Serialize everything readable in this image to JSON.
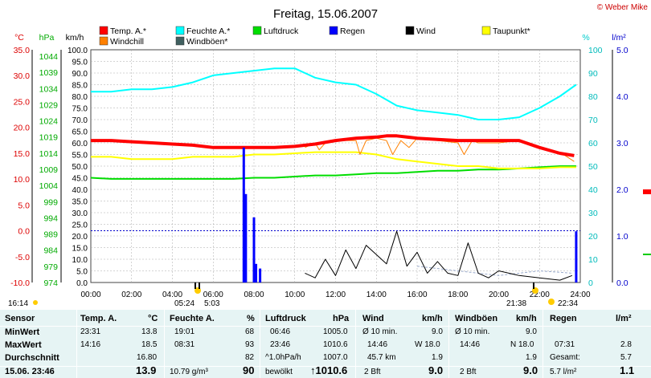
{
  "title": "Freitag, 15.06.2007",
  "copyright": "© Weber Mike",
  "axis_units": {
    "temp": "°C",
    "pressure": "hPa",
    "speed": "km/h",
    "humidity": "%",
    "rain": "l/m²"
  },
  "legend": [
    {
      "label": "Temp. A.*",
      "color": "#ff0000"
    },
    {
      "label": "Feuchte A.*",
      "color": "#00ffff"
    },
    {
      "label": "Luftdruck",
      "color": "#00dd00"
    },
    {
      "label": "Regen",
      "color": "#0000ff"
    },
    {
      "label": "Wind",
      "color": "#000000"
    },
    {
      "label": "Taupunkt*",
      "color": "#ffff00"
    },
    {
      "label": "Windchill",
      "color": "#ff8000"
    },
    {
      "label": "Windböen*",
      "color": "#406060"
    }
  ],
  "colors": {
    "temp": "#ff0000",
    "humidity": "#00ffff",
    "pressure": "#00dd00",
    "rain": "#0000ff",
    "wind": "#000000",
    "gust": "#99aacc",
    "dewpoint": "#ffff00",
    "windchill": "#ff8000",
    "grid": "#aaaaaa",
    "table_bg": "#e6f4f4"
  },
  "chart_data": {
    "type": "line",
    "title": "Freitag, 15.06.2007",
    "x_ticks": [
      "00:00",
      "02:00",
      "04:00",
      "06:00",
      "08:00",
      "10:00",
      "12:00",
      "14:00",
      "16:00",
      "18:00",
      "20:00",
      "22:00",
      "24:00"
    ],
    "xlim": [
      0,
      24
    ],
    "axes": {
      "temp_c": {
        "min": -10,
        "max": 35,
        "ticks": [
          "35.0",
          "30.0",
          "25.0",
          "20.0",
          "15.0",
          "10.0",
          "5.0",
          "0.0",
          "-5.0",
          "-10.0"
        ]
      },
      "pressure_hpa": {
        "ticks": [
          "1044",
          "1039",
          "1034",
          "1029",
          "1024",
          "1019",
          "1014",
          "1009",
          "1004",
          "999",
          "994",
          "989",
          "984",
          "979",
          "974"
        ]
      },
      "speed_kmh": {
        "min": 0,
        "max": 100,
        "ticks": [
          "100.0",
          "95.0",
          "90.0",
          "85.0",
          "80.0",
          "75.0",
          "70.0",
          "65.0",
          "60.0",
          "55.0",
          "50.0",
          "45.0",
          "40.0",
          "35.0",
          "30.0",
          "25.0",
          "20.0",
          "15.0",
          "10.0",
          "5.0",
          "0.0"
        ]
      },
      "humidity_pct": {
        "min": 0,
        "max": 100,
        "ticks": [
          "100",
          "90",
          "80",
          "70",
          "60",
          "50",
          "40",
          "30",
          "20",
          "10",
          "0"
        ]
      },
      "rain_l": {
        "min": 0,
        "max": 5,
        "ticks": [
          "5.0",
          "4.0",
          "3.0",
          "2.0",
          "1.0",
          "0.0"
        ]
      }
    },
    "series": [
      {
        "name": "Temp. A.*",
        "axis": "speed_kmh",
        "x": [
          0,
          1,
          2,
          3,
          4,
          5,
          6,
          7,
          8,
          9,
          10,
          11,
          12,
          13,
          14,
          14.5,
          15,
          16,
          17,
          18,
          19,
          20,
          21,
          22,
          23,
          23.7
        ],
        "y": [
          61,
          61,
          60.5,
          60,
          59.5,
          59,
          58,
          58,
          58,
          58,
          58.5,
          59.5,
          61,
          62,
          62.5,
          63,
          63,
          62,
          61.5,
          61,
          61,
          61,
          61,
          58,
          55.5,
          54.5
        ]
      },
      {
        "name": "Feuchte A.*",
        "axis": "humidity_pct",
        "x": [
          0,
          1,
          2,
          3,
          4,
          5,
          6,
          7,
          8,
          9,
          10,
          11,
          12,
          13,
          14,
          15,
          16,
          17,
          18,
          19,
          20,
          21,
          22,
          23,
          23.8
        ],
        "y": [
          82,
          82,
          83,
          83,
          84,
          86,
          89,
          90,
          91,
          92,
          92,
          88,
          86,
          85,
          81,
          76,
          74,
          73,
          72,
          70,
          70,
          71,
          75,
          80,
          85
        ]
      },
      {
        "name": "Luftdruck",
        "axis": "speed_kmh",
        "x": [
          0,
          1,
          2,
          3,
          4,
          5,
          6,
          7,
          8,
          9,
          10,
          11,
          12,
          13,
          14,
          15,
          16,
          17,
          18,
          19,
          20,
          21,
          22,
          23,
          23.8
        ],
        "y": [
          45,
          44.5,
          44.5,
          44.5,
          44.5,
          44.5,
          44.5,
          44.5,
          45,
          45,
          45.5,
          46,
          46,
          46.5,
          47,
          47,
          47.5,
          48,
          48,
          48.5,
          48.5,
          49,
          49.5,
          50,
          50
        ]
      },
      {
        "name": "Taupunkt*",
        "axis": "speed_kmh",
        "x": [
          0,
          1,
          2,
          3,
          4,
          5,
          6,
          7,
          8,
          9,
          10,
          11,
          12,
          13,
          14,
          15,
          16,
          17,
          18,
          19,
          20,
          21,
          22,
          23,
          23.8
        ],
        "y": [
          54,
          54,
          53,
          53,
          53,
          54,
          54,
          54,
          55,
          55,
          55.5,
          56,
          56,
          56,
          55,
          53,
          52,
          51,
          50,
          50,
          49,
          49,
          49,
          49.5,
          49.5
        ]
      },
      {
        "name": "Windchill",
        "axis": "speed_kmh",
        "x": [
          10.5,
          11,
          11.2,
          11.5,
          12,
          12.5,
          13,
          13.2,
          13.5,
          14,
          14.5,
          14.8,
          15.2,
          15.6,
          16,
          17,
          18,
          18.3,
          18.7,
          19,
          20,
          21,
          22,
          23,
          23.7
        ],
        "y": [
          58,
          60,
          57,
          60,
          61,
          61,
          61,
          55,
          61,
          62,
          61,
          55,
          61,
          58,
          62,
          61,
          60,
          55,
          61,
          60,
          60,
          61,
          58,
          56,
          52
        ]
      },
      {
        "name": "Regen",
        "axis": "rain_l",
        "x": [
          7.5,
          7.6,
          8.0,
          8.1,
          8.3,
          23.8
        ],
        "y": [
          2.9,
          1.9,
          1.4,
          0.4,
          0.3,
          1.1
        ]
      },
      {
        "name": "Wind",
        "axis": "speed_kmh",
        "x": [
          10.5,
          11,
          11.5,
          12,
          12.5,
          13,
          13.5,
          14,
          14.5,
          15,
          15.5,
          16,
          16.5,
          17,
          17.5,
          18,
          18.5,
          19,
          19.5,
          20,
          21,
          22,
          23,
          23.6
        ],
        "y": [
          4,
          2,
          10,
          3,
          14,
          6,
          16,
          12,
          8,
          22,
          7,
          13,
          4,
          9,
          4,
          3,
          17,
          4,
          2,
          5,
          3,
          2,
          1,
          3
        ]
      },
      {
        "name": "Windböen*",
        "axis": "speed_kmh",
        "x": [
          16,
          18,
          20,
          22,
          23.6
        ],
        "y": [
          7,
          5,
          3,
          5,
          4
        ]
      }
    ]
  },
  "axis_annotations": {
    "sunrise_label": "05:24",
    "sunrise_label2": "5:03",
    "sunset_label": "21:38",
    "sunset_label2": "22:34",
    "moon_label": "16:14"
  },
  "table": {
    "sensor": {
      "header": "Sensor",
      "rows": [
        "MinWert",
        "MaxWert",
        "Durchschnitt"
      ],
      "footer": "15.06. 23:46"
    },
    "temp": {
      "header": "Temp. A.",
      "unit": "°C",
      "min_time": "23:31",
      "min_val": "13.8",
      "max_time": "14:16",
      "max_val": "18.5",
      "avg": "16.80",
      "current": "13.9"
    },
    "humidity": {
      "header": "Feuchte A.",
      "unit": "%",
      "min_time": "19:01",
      "min_val": "68",
      "max_time": "08:31",
      "max_val": "93",
      "avg": "82",
      "extra": "10.79 g/m³",
      "current": "90"
    },
    "pressure": {
      "header": "Luftdruck",
      "unit": "hPa",
      "min_time": "06:46",
      "min_val": "1005.0",
      "max_time": "23:46",
      "max_val": "1010.6",
      "trend": "^1.0hPa/h",
      "avg": "1007.0",
      "forecast": "bewölkt",
      "current": "↑1010.6"
    },
    "wind": {
      "header": "Wind",
      "unit": "km/h",
      "avg_label": "Ø 10 min.",
      "avg_val": "9.0",
      "max_time": "14:46",
      "max_val": "W 18.0",
      "dist": "45.7 km",
      "dist_val": "1.9",
      "bft": "2 Bft",
      "current": "9.0"
    },
    "gust": {
      "header": "Windböen",
      "unit": "km/h",
      "avg_label": "Ø 10 min.",
      "avg_val": "9.0",
      "max_time": "14:46",
      "max_val": "N 18.0",
      "avg2": "1.9",
      "bft": "2 Bft",
      "current": "9.0"
    },
    "rain": {
      "header": "Regen",
      "unit": "l/m²",
      "max_time": "07:31",
      "max_val": "2.8",
      "total_label": "Gesamt:",
      "total_val": "5.7",
      "footer_text": "5.7 l/m²",
      "current": "1.1"
    }
  }
}
